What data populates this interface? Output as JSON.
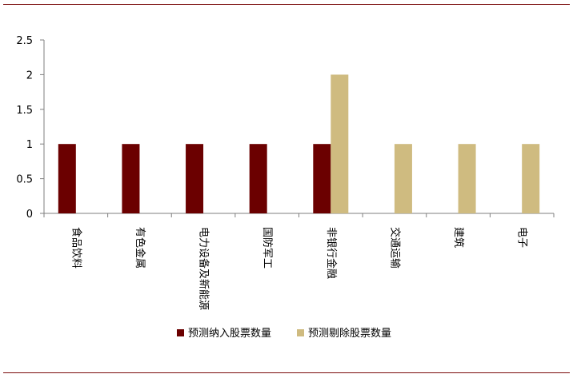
{
  "colors": {
    "rule": "#7a0a0a",
    "axis": "#7f7f7f",
    "series_1": "#6b0000",
    "series_2": "#cfbb80"
  },
  "chart_data": {
    "type": "bar",
    "title": "",
    "xlabel": "",
    "ylabel": "",
    "categories": [
      "食品饮料",
      "有色金属",
      "电力设备及新能源",
      "国防军工",
      "非银行金融",
      "交通运输",
      "建筑",
      "电子"
    ],
    "series": [
      {
        "name": "预测纳入股票数量",
        "values": [
          1,
          1,
          1,
          1,
          1,
          0,
          0,
          0
        ]
      },
      {
        "name": "预测剔除股票数量",
        "values": [
          0,
          0,
          0,
          0,
          2,
          1,
          1,
          1
        ]
      }
    ],
    "ylim": [
      0,
      2.5
    ],
    "yticks": [
      0,
      0.5,
      1,
      1.5,
      2,
      2.5
    ],
    "ytick_labels": [
      "0",
      "0.5",
      "1",
      "1.5",
      "2",
      "2.5"
    ],
    "grid": false,
    "legend_position": "bottom"
  }
}
